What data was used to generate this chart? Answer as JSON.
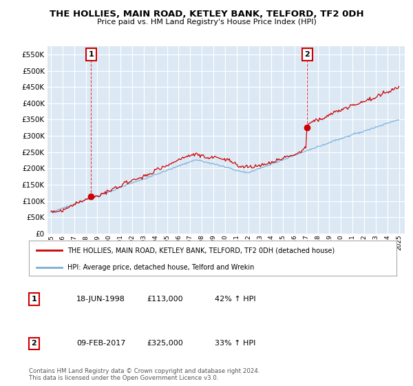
{
  "title": "THE HOLLIES, MAIN ROAD, KETLEY BANK, TELFORD, TF2 0DH",
  "subtitle": "Price paid vs. HM Land Registry's House Price Index (HPI)",
  "red_label": "THE HOLLIES, MAIN ROAD, KETLEY BANK, TELFORD, TF2 0DH (detached house)",
  "blue_label": "HPI: Average price, detached house, Telford and Wrekin",
  "annotation1_date": "18-JUN-1998",
  "annotation1_price": "£113,000",
  "annotation1_hpi": "42% ↑ HPI",
  "annotation2_date": "09-FEB-2017",
  "annotation2_price": "£325,000",
  "annotation2_hpi": "33% ↑ HPI",
  "footnote": "Contains HM Land Registry data © Crown copyright and database right 2024.\nThis data is licensed under the Open Government Licence v3.0.",
  "ylim": [
    0,
    575000
  ],
  "yticks": [
    0,
    50000,
    100000,
    150000,
    200000,
    250000,
    300000,
    350000,
    400000,
    450000,
    500000,
    550000
  ],
  "plot_bg_color": "#dce9f5",
  "background_color": "#ffffff",
  "grid_color": "#ffffff",
  "red_color": "#cc0000",
  "blue_color": "#7aaed6",
  "purchase1_year": 1998.46,
  "purchase1_value": 113000,
  "purchase2_year": 2017.1,
  "purchase2_value": 325000
}
